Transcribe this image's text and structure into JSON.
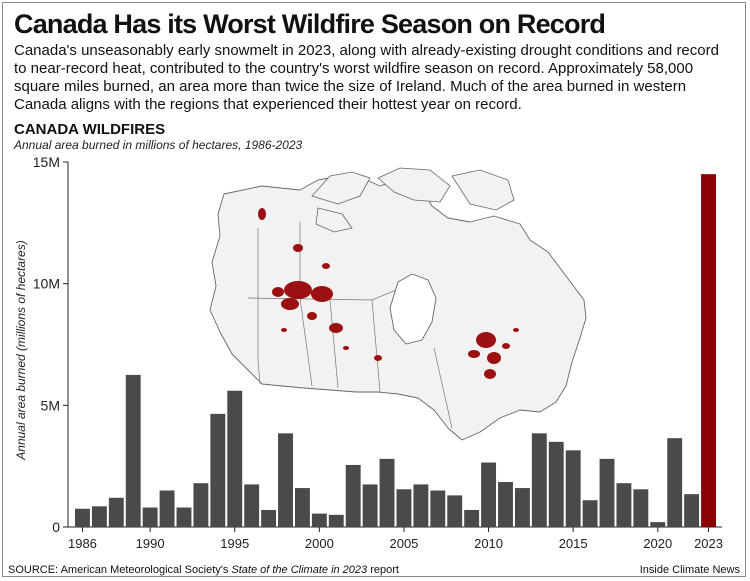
{
  "headline": "Canada Has its Worst Wildfire Season on Record",
  "dek": "Canada's unseasonably early snowmelt in 2023, along with already-existing drought conditions and record to near-record heat, contributed to the country's worst wildfire season on record. Approximately 58,000 square miles burned, an area more than twice the size of Ireland. Much of the area burned in western Canada aligns with the regions that experienced their hottest year on record.",
  "source": {
    "prefix": "SOURCE: American Meteorological Society's ",
    "italic": "State of the Climate in 2023",
    "suffix": " report"
  },
  "credit": "Inside Climate News",
  "colors": {
    "bar": "#4a4a4a",
    "highlight": "#8b0000",
    "fire": "#9b1010",
    "land": "#f2f2f2",
    "border": "#666666"
  },
  "map_icon": "canada-wildfire-map",
  "chart_data": {
    "type": "bar",
    "title": "CANADA WILDFIRES",
    "subtitle": "Annual area burned in millions of hectares, 1986-2023",
    "ylabel": "Annual area burned (millions of hectares)",
    "xlabel": "",
    "ylim": [
      0,
      15
    ],
    "yticks": [
      0,
      5,
      10,
      15
    ],
    "ytick_labels": [
      "0",
      "5M",
      "10M",
      "15M"
    ],
    "xtick_years": [
      1986,
      1990,
      1995,
      2000,
      2005,
      2010,
      2015,
      2020,
      2023
    ],
    "highlight_year": 2023,
    "grid": false,
    "years": [
      1986,
      1987,
      1988,
      1989,
      1990,
      1991,
      1992,
      1993,
      1994,
      1995,
      1996,
      1997,
      1998,
      1999,
      2000,
      2001,
      2002,
      2003,
      2004,
      2005,
      2006,
      2007,
      2008,
      2009,
      2010,
      2011,
      2012,
      2013,
      2014,
      2015,
      2016,
      2017,
      2018,
      2019,
      2020,
      2021,
      2022,
      2023
    ],
    "values": [
      0.75,
      0.85,
      1.2,
      6.25,
      0.8,
      1.5,
      0.8,
      1.8,
      4.65,
      5.6,
      1.75,
      0.7,
      3.85,
      1.6,
      0.55,
      0.5,
      2.55,
      1.75,
      2.8,
      1.55,
      1.75,
      1.5,
      1.3,
      0.7,
      2.65,
      1.85,
      1.6,
      3.85,
      3.5,
      3.15,
      1.1,
      2.8,
      1.8,
      1.55,
      0.2,
      3.65,
      1.35,
      14.5
    ]
  }
}
